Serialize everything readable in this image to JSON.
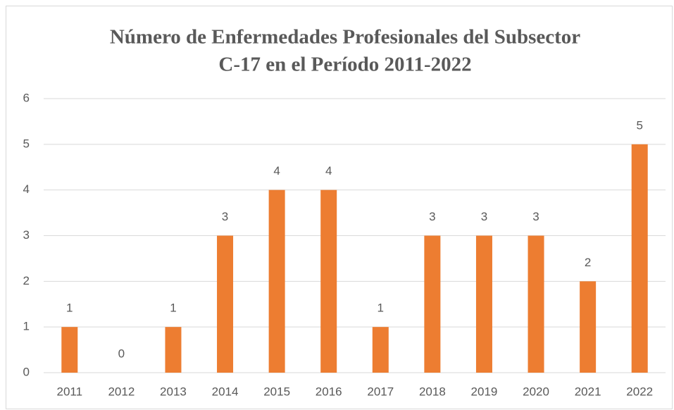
{
  "chart_data": {
    "type": "bar",
    "title": [
      "Número de Enfermedades Profesionales del Subsector",
      "C-17 en el Período 2011-2022"
    ],
    "categories": [
      "2011",
      "2012",
      "2013",
      "2014",
      "2015",
      "2016",
      "2017",
      "2018",
      "2019",
      "2020",
      "2021",
      "2022"
    ],
    "values": [
      1,
      0,
      1,
      3,
      4,
      4,
      1,
      3,
      3,
      3,
      2,
      5
    ],
    "color": "#ed7d31",
    "ylim": [
      0,
      6
    ],
    "yticks": [
      0,
      1,
      2,
      3,
      4,
      5,
      6
    ],
    "grid": true
  }
}
